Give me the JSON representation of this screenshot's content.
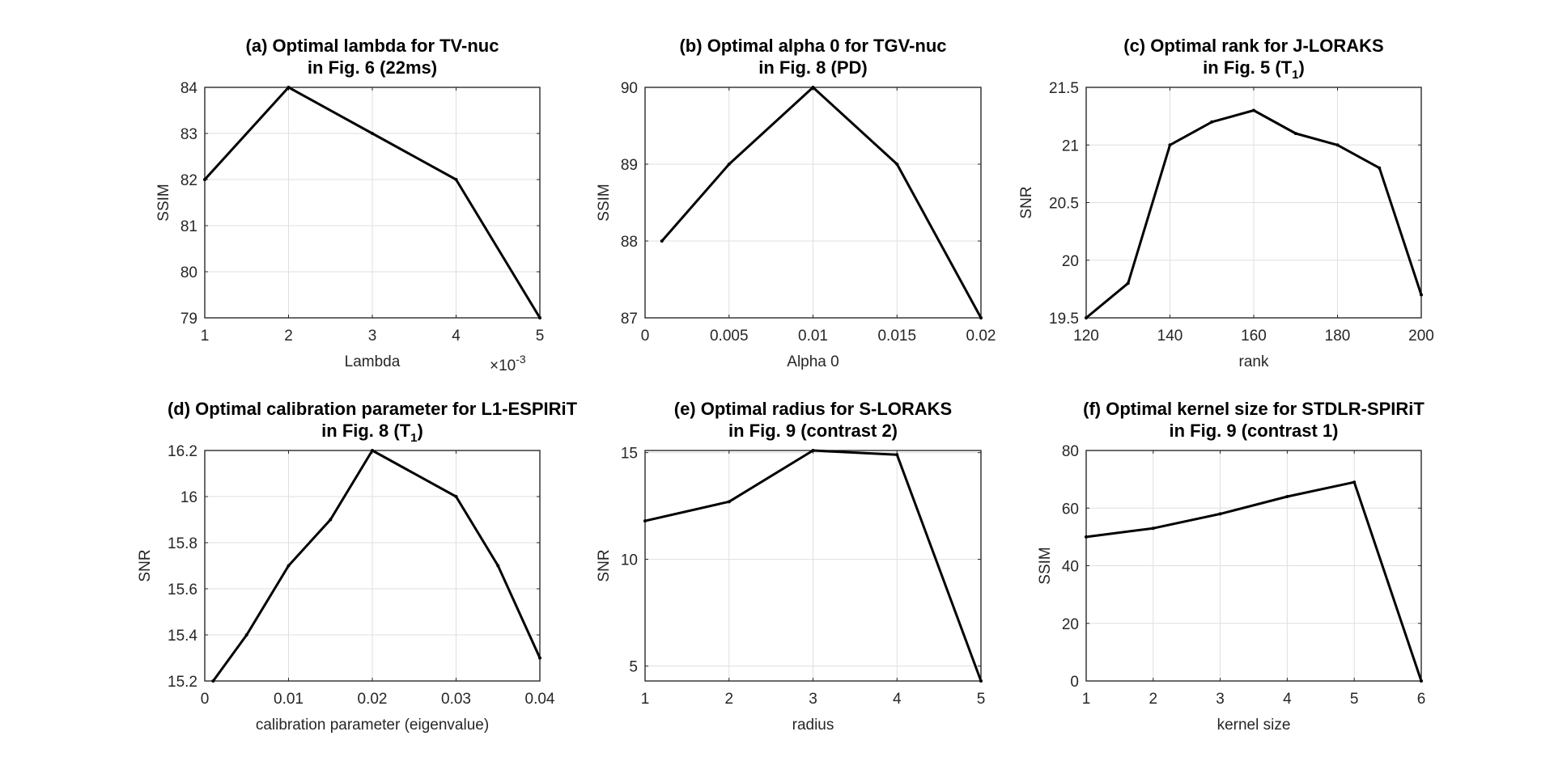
{
  "chart_data": [
    {
      "id": "a",
      "type": "line",
      "title_line1": "(a) Optimal lambda for TV-nuc",
      "title_line2": "in Fig. 6 (22ms)",
      "xlabel": "Lambda",
      "ylabel": "SSIM",
      "x_multiplier": "×10",
      "x_multiplier_exp": "-3",
      "xlim": [
        1,
        5
      ],
      "ylim": [
        79,
        84
      ],
      "xticks": [
        1,
        2,
        3,
        4,
        5
      ],
      "yticks": [
        79,
        80,
        81,
        82,
        83,
        84
      ],
      "xtick_labels": [
        "1",
        "2",
        "3",
        "4",
        "5"
      ],
      "ytick_labels": [
        "79",
        "80",
        "81",
        "82",
        "83",
        "84"
      ],
      "x": [
        1,
        2,
        3,
        4,
        5
      ],
      "y": [
        82,
        84,
        83,
        82,
        79
      ],
      "grid": true
    },
    {
      "id": "b",
      "type": "line",
      "title_line1": "(b) Optimal alpha 0 for TGV-nuc",
      "title_line2": "in Fig. 8 (PD)",
      "xlabel": "Alpha 0",
      "ylabel": "SSIM",
      "xlim": [
        0,
        0.02
      ],
      "ylim": [
        87,
        90
      ],
      "xticks": [
        0,
        0.005,
        0.01,
        0.015,
        0.02
      ],
      "yticks": [
        87,
        88,
        89,
        90
      ],
      "xtick_labels": [
        "0",
        "0.005",
        "0.01",
        "0.015",
        "0.02"
      ],
      "ytick_labels": [
        "87",
        "88",
        "89",
        "90"
      ],
      "x": [
        0.001,
        0.005,
        0.01,
        0.015,
        0.02
      ],
      "y": [
        88,
        89,
        90,
        89,
        87
      ],
      "grid": true
    },
    {
      "id": "c",
      "type": "line",
      "title_line1": "(c) Optimal rank for J-LORAKS",
      "title_line2": "in Fig. 5 (T",
      "title_line2_sub": "1",
      "title_line2_end": ")",
      "xlabel": "rank",
      "ylabel": "SNR",
      "xlim": [
        120,
        200
      ],
      "ylim": [
        19.5,
        21.5
      ],
      "xticks": [
        120,
        140,
        160,
        180,
        200
      ],
      "yticks": [
        19.5,
        20,
        20.5,
        21,
        21.5
      ],
      "xtick_labels": [
        "120",
        "140",
        "160",
        "180",
        "200"
      ],
      "ytick_labels": [
        "19.5",
        "20",
        "20.5",
        "21",
        "21.5"
      ],
      "x": [
        120,
        130,
        140,
        150,
        160,
        170,
        180,
        190,
        200
      ],
      "y": [
        19.5,
        19.8,
        21.0,
        21.2,
        21.3,
        21.1,
        21.0,
        20.8,
        19.7
      ],
      "grid": true
    },
    {
      "id": "d",
      "type": "line",
      "title_line1": "(d) Optimal calibration parameter for L1-ESPIRiT",
      "title_line2": "in Fig. 8 (T",
      "title_line2_sub": "1",
      "title_line2_end": ")",
      "xlabel": "calibration parameter (eigenvalue)",
      "ylabel": "SNR",
      "xlim": [
        0,
        0.04
      ],
      "ylim": [
        15.2,
        16.2
      ],
      "xticks": [
        0,
        0.01,
        0.02,
        0.03,
        0.04
      ],
      "yticks": [
        15.2,
        15.4,
        15.6,
        15.8,
        16,
        16.2
      ],
      "xtick_labels": [
        "0",
        "0.01",
        "0.02",
        "0.03",
        "0.04"
      ],
      "ytick_labels": [
        "15.2",
        "15.4",
        "15.6",
        "15.8",
        "16",
        "16.2"
      ],
      "x": [
        0.001,
        0.005,
        0.01,
        0.015,
        0.02,
        0.03,
        0.035,
        0.04
      ],
      "y": [
        15.2,
        15.4,
        15.7,
        15.9,
        16.2,
        16.0,
        15.7,
        15.3
      ],
      "grid": true
    },
    {
      "id": "e",
      "type": "line",
      "title_line1": "(e) Optimal radius for S-LORAKS",
      "title_line2": "in Fig. 9 (contrast 2)",
      "xlabel": "radius",
      "ylabel": "SNR",
      "xlim": [
        1,
        5
      ],
      "ylim": [
        4.3,
        15.1
      ],
      "xticks": [
        1,
        2,
        3,
        4,
        5
      ],
      "yticks": [
        5,
        10,
        15
      ],
      "xtick_labels": [
        "1",
        "2",
        "3",
        "4",
        "5"
      ],
      "ytick_labels": [
        "5",
        "10",
        "15"
      ],
      "x": [
        1,
        2,
        3,
        4,
        5
      ],
      "y": [
        11.8,
        12.7,
        15.1,
        14.9,
        4.3
      ],
      "grid": true
    },
    {
      "id": "f",
      "type": "line",
      "title_line1": "(f) Optimal kernel size for STDLR-SPIRiT",
      "title_line2": "in Fig. 9 (contrast 1)",
      "xlabel": "kernel size",
      "ylabel": "SSIM",
      "xlim": [
        1,
        6
      ],
      "ylim": [
        0,
        80
      ],
      "xticks": [
        1,
        2,
        3,
        4,
        5,
        6
      ],
      "yticks": [
        0,
        20,
        40,
        60,
        80
      ],
      "xtick_labels": [
        "1",
        "2",
        "3",
        "4",
        "5",
        "6"
      ],
      "ytick_labels": [
        "0",
        "20",
        "40",
        "60",
        "80"
      ],
      "x": [
        1,
        2,
        3,
        4,
        5,
        6
      ],
      "y": [
        50,
        53,
        58,
        64,
        69,
        0
      ],
      "grid": true
    }
  ]
}
